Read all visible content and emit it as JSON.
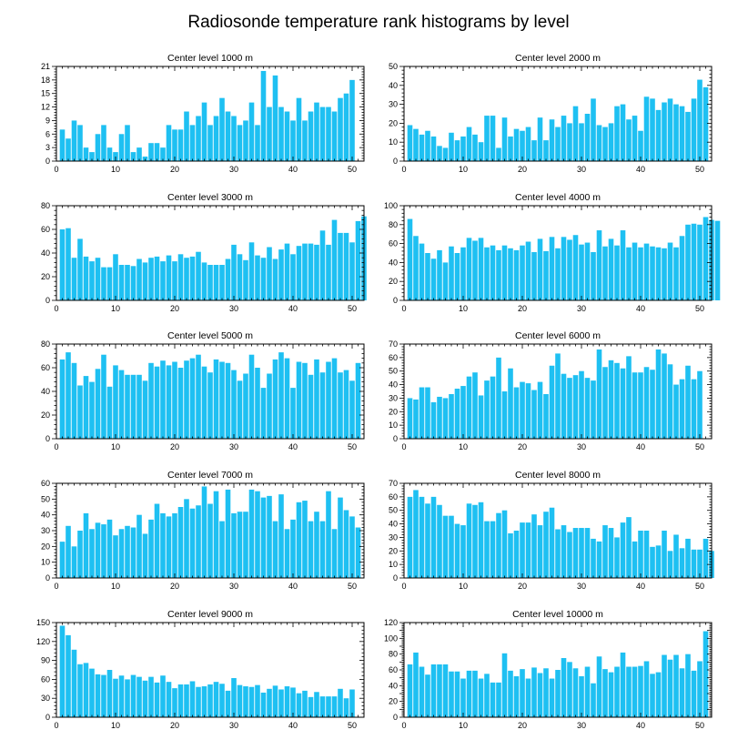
{
  "title": "Radiosonde temperature rank histograms by level",
  "colors": {
    "bar": "#1EC0F2",
    "axis": "#000000",
    "background": "#ffffff"
  },
  "chart_data": [
    {
      "type": "bar",
      "title": "Center level 1000 m",
      "xlim": [
        0,
        52
      ],
      "ylim": [
        0,
        21
      ],
      "xticks": [
        0,
        10,
        20,
        30,
        40,
        50
      ],
      "yticks": [
        0,
        3,
        6,
        9,
        12,
        15,
        18,
        21
      ],
      "values": [
        7,
        5,
        9,
        8,
        3,
        2,
        6,
        8,
        3,
        2,
        6,
        8,
        2,
        3,
        1,
        4,
        4,
        3,
        8,
        7,
        7,
        11,
        8,
        10,
        13,
        8,
        10,
        14,
        11,
        10,
        8,
        9,
        13,
        8,
        20,
        12,
        19,
        12,
        11,
        9,
        14,
        9,
        11,
        13,
        12,
        12,
        11,
        14,
        15,
        18
      ]
    },
    {
      "type": "bar",
      "title": "Center level 2000 m",
      "xlim": [
        0,
        52
      ],
      "ylim": [
        0,
        50
      ],
      "xticks": [
        0,
        10,
        20,
        30,
        40,
        50
      ],
      "yticks": [
        0,
        10,
        20,
        30,
        40,
        50
      ],
      "values": [
        19,
        17,
        14,
        16,
        13,
        8,
        7,
        15,
        11,
        13,
        18,
        14,
        10,
        24,
        24,
        7,
        23,
        13,
        17,
        16,
        18,
        11,
        23,
        11,
        22,
        18,
        24,
        20,
        29,
        20,
        25,
        33,
        19,
        18,
        20,
        29,
        30,
        22,
        24,
        16,
        34,
        33,
        27,
        31,
        33,
        30,
        29,
        26,
        33,
        43,
        39
      ]
    },
    {
      "type": "bar",
      "title": "Center level 3000 m",
      "xlim": [
        0,
        52
      ],
      "ylim": [
        0,
        80
      ],
      "xticks": [
        0,
        10,
        20,
        30,
        40,
        50
      ],
      "yticks": [
        0,
        20,
        40,
        60,
        80
      ],
      "values": [
        60,
        61,
        36,
        52,
        37,
        33,
        36,
        28,
        28,
        39,
        30,
        30,
        29,
        35,
        32,
        36,
        37,
        33,
        38,
        33,
        39,
        36,
        37,
        41,
        32,
        30,
        30,
        30,
        35,
        47,
        39,
        34,
        49,
        38,
        36,
        45,
        35,
        43,
        48,
        39,
        46,
        48,
        48,
        47,
        59,
        47,
        68,
        57,
        57,
        49,
        67,
        71
      ]
    },
    {
      "type": "bar",
      "title": "Center level 4000 m",
      "xlim": [
        0,
        52
      ],
      "ylim": [
        0,
        100
      ],
      "xticks": [
        0,
        10,
        20,
        30,
        40,
        50
      ],
      "yticks": [
        0,
        20,
        40,
        60,
        80,
        100
      ],
      "values": [
        86,
        68,
        60,
        50,
        44,
        53,
        40,
        57,
        50,
        56,
        66,
        63,
        66,
        56,
        58,
        53,
        58,
        55,
        53,
        58,
        62,
        51,
        65,
        52,
        67,
        55,
        67,
        64,
        69,
        59,
        61,
        51,
        74,
        57,
        65,
        58,
        74,
        56,
        61,
        56,
        60,
        57,
        56,
        55,
        61,
        56,
        68,
        80,
        81,
        80,
        88,
        85,
        84
      ]
    },
    {
      "type": "bar",
      "title": "Center level 5000 m",
      "xlim": [
        0,
        52
      ],
      "ylim": [
        0,
        80
      ],
      "xticks": [
        0,
        10,
        20,
        30,
        40,
        50
      ],
      "yticks": [
        0,
        20,
        40,
        60,
        80
      ],
      "values": [
        67,
        73,
        64,
        45,
        53,
        48,
        59,
        71,
        44,
        62,
        58,
        54,
        54,
        54,
        49,
        64,
        61,
        66,
        62,
        65,
        60,
        66,
        68,
        71,
        61,
        56,
        67,
        65,
        64,
        58,
        49,
        55,
        71,
        60,
        43,
        55,
        67,
        73,
        68,
        43,
        65,
        64,
        54,
        67,
        56,
        65,
        68,
        56,
        58,
        49,
        64
      ]
    },
    {
      "type": "bar",
      "title": "Center level 6000 m",
      "xlim": [
        0,
        52
      ],
      "ylim": [
        0,
        70
      ],
      "xticks": [
        0,
        10,
        20,
        30,
        40,
        50
      ],
      "yticks": [
        0,
        10,
        20,
        30,
        40,
        50,
        60,
        70
      ],
      "values": [
        30,
        29,
        38,
        38,
        27,
        31,
        30,
        33,
        37,
        39,
        46,
        49,
        32,
        43,
        46,
        60,
        35,
        52,
        38,
        42,
        41,
        36,
        42,
        33,
        54,
        63,
        48,
        45,
        47,
        50,
        45,
        43,
        66,
        53,
        58,
        56,
        52,
        61,
        49,
        49,
        53,
        51,
        66,
        63,
        55,
        40,
        44,
        54,
        44,
        50
      ]
    },
    {
      "type": "bar",
      "title": "Center level 7000 m",
      "xlim": [
        0,
        52
      ],
      "ylim": [
        0,
        60
      ],
      "xticks": [
        0,
        10,
        20,
        30,
        40,
        50
      ],
      "yticks": [
        0,
        10,
        20,
        30,
        40,
        50,
        60
      ],
      "values": [
        23,
        33,
        20,
        30,
        41,
        31,
        35,
        34,
        37,
        27,
        31,
        33,
        32,
        40,
        28,
        37,
        47,
        41,
        39,
        41,
        45,
        50,
        44,
        46,
        58,
        47,
        55,
        36,
        56,
        41,
        42,
        42,
        56,
        55,
        51,
        52,
        36,
        53,
        31,
        37,
        48,
        49,
        36,
        42,
        36,
        55,
        31,
        51,
        43,
        39,
        32
      ]
    },
    {
      "type": "bar",
      "title": "Center level 8000 m",
      "xlim": [
        0,
        52
      ],
      "ylim": [
        0,
        70
      ],
      "xticks": [
        0,
        10,
        20,
        30,
        40,
        50
      ],
      "yticks": [
        0,
        10,
        20,
        30,
        40,
        50,
        60,
        70
      ],
      "values": [
        60,
        65,
        60,
        55,
        60,
        54,
        46,
        46,
        40,
        39,
        55,
        54,
        56,
        42,
        42,
        48,
        50,
        33,
        35,
        41,
        41,
        47,
        39,
        49,
        52,
        36,
        39,
        34,
        37,
        37,
        37,
        29,
        27,
        39,
        37,
        30,
        41,
        45,
        27,
        35,
        35,
        23,
        24,
        35,
        20,
        32,
        22,
        29,
        21,
        21,
        29,
        20
      ]
    },
    {
      "type": "bar",
      "title": "Center level 9000 m",
      "xlim": [
        0,
        52
      ],
      "ylim": [
        0,
        150
      ],
      "xticks": [
        0,
        10,
        20,
        30,
        40,
        50
      ],
      "yticks": [
        0,
        30,
        60,
        90,
        120,
        150
      ],
      "values": [
        145,
        130,
        107,
        84,
        86,
        77,
        68,
        67,
        75,
        61,
        66,
        60,
        67,
        64,
        58,
        64,
        55,
        66,
        56,
        46,
        52,
        52,
        57,
        48,
        49,
        52,
        56,
        53,
        42,
        62,
        51,
        49,
        48,
        51,
        39,
        45,
        50,
        44,
        49,
        47,
        38,
        42,
        32,
        40,
        33,
        33,
        33,
        45,
        30,
        44
      ]
    },
    {
      "type": "bar",
      "title": "Center level 10000 m",
      "xlim": [
        0,
        52
      ],
      "ylim": [
        0,
        120
      ],
      "xticks": [
        0,
        10,
        20,
        30,
        40,
        50
      ],
      "yticks": [
        0,
        10,
        20,
        30,
        40,
        50,
        60,
        70,
        80,
        90,
        100,
        110,
        120
      ],
      "ytick_labels": [
        "0",
        "20",
        "40",
        "60",
        "80",
        "100",
        "120"
      ],
      "values": [
        67,
        82,
        64,
        54,
        67,
        67,
        67,
        58,
        58,
        49,
        59,
        59,
        49,
        55,
        44,
        44,
        81,
        59,
        52,
        61,
        49,
        63,
        56,
        62,
        49,
        60,
        75,
        70,
        62,
        52,
        64,
        43,
        77,
        61,
        57,
        64,
        82,
        64,
        64,
        65,
        71,
        55,
        57,
        79,
        73,
        79,
        62,
        80,
        59,
        71,
        109
      ]
    }
  ]
}
